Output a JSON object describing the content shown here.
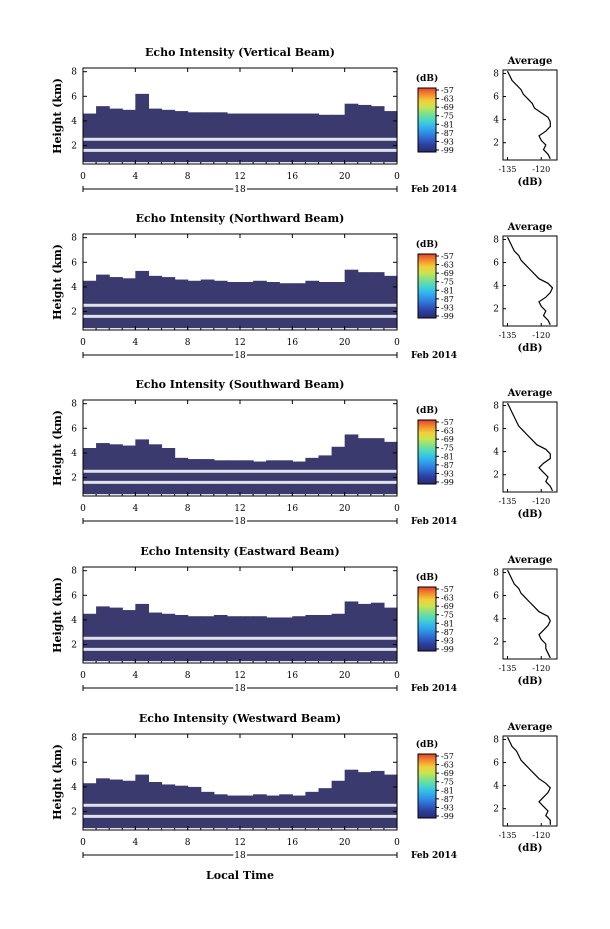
{
  "figure": {
    "xlabel": "Local Time",
    "date_label": "Feb 2014",
    "colorbar_unit": "(dB)",
    "avg_title": "Average",
    "avg_xlabel": "(dB)",
    "fill_color": "#3a3a6e",
    "colormap": [
      "#2b2b70",
      "#2c3c9a",
      "#2f62c8",
      "#2f8ee6",
      "#33b7ee",
      "#49d6c8",
      "#7fe08c",
      "#c7e452",
      "#f2cf3a",
      "#f28c2e",
      "#e8402a"
    ]
  },
  "chart_data": [
    {
      "type": "heatmap",
      "title": "Echo Intensity (Vertical Beam)",
      "ylabel": "Height (km)",
      "x_ticks": [
        "0",
        "4",
        "8",
        "12",
        "16",
        "20",
        "0"
      ],
      "x_day": "18",
      "y_ticks": [
        "2",
        "4",
        "6",
        "8"
      ],
      "xlim": [
        0,
        24
      ],
      "ylim": [
        0.5,
        8.3
      ],
      "colorbar_ticks": [
        "-57",
        "-63",
        "-69",
        "-75",
        "-81",
        "-87",
        "-93",
        "-99"
      ],
      "clim": [
        -99,
        -57
      ],
      "cloud_top_km": [
        4.6,
        5.2,
        5.0,
        4.9,
        6.2,
        5.0,
        4.9,
        4.8,
        4.7,
        4.7,
        4.7,
        4.6,
        4.6,
        4.6,
        4.6,
        4.6,
        4.6,
        4.6,
        4.5,
        4.5,
        5.4,
        5.3,
        5.2,
        4.8
      ],
      "avg_profile": {
        "x_ticks": [
          "-135",
          "-120"
        ],
        "xlim": [
          -137,
          -113
        ],
        "y_ticks": [
          "2",
          "4",
          "6",
          "8"
        ],
        "ylim": [
          0.5,
          8.3
        ],
        "height_km": [
          0.6,
          1.0,
          1.4,
          1.8,
          2.2,
          2.6,
          3.0,
          3.4,
          3.8,
          4.2,
          4.6,
          5.0,
          5.4,
          5.8,
          6.2,
          6.6,
          7.0,
          7.4,
          7.8,
          8.2
        ],
        "db": [
          -116,
          -117,
          -119,
          -118,
          -120,
          -121,
          -118,
          -116,
          -116,
          -117,
          -120,
          -123,
          -124,
          -126,
          -128,
          -129,
          -131,
          -133,
          -134,
          -135
        ]
      }
    },
    {
      "type": "heatmap",
      "title": "Echo Intensity (Northward Beam)",
      "ylabel": "Height (km)",
      "x_ticks": [
        "0",
        "4",
        "8",
        "12",
        "16",
        "20",
        "0"
      ],
      "x_day": "18",
      "y_ticks": [
        "2",
        "4",
        "6",
        "8"
      ],
      "xlim": [
        0,
        24
      ],
      "ylim": [
        0.5,
        8.3
      ],
      "colorbar_ticks": [
        "-57",
        "-63",
        "-69",
        "-75",
        "-81",
        "-87",
        "-93",
        "-99"
      ],
      "clim": [
        -99,
        -57
      ],
      "cloud_top_km": [
        4.5,
        5.0,
        4.8,
        4.7,
        5.3,
        4.9,
        4.8,
        4.6,
        4.5,
        4.6,
        4.5,
        4.4,
        4.4,
        4.5,
        4.4,
        4.3,
        4.3,
        4.5,
        4.4,
        4.4,
        5.4,
        5.2,
        5.2,
        4.9
      ],
      "avg_profile": {
        "x_ticks": [
          "-135",
          "-120"
        ],
        "xlim": [
          -137,
          -113
        ],
        "y_ticks": [
          "2",
          "4",
          "6",
          "8"
        ],
        "ylim": [
          0.5,
          8.3
        ],
        "height_km": [
          0.6,
          1.0,
          1.4,
          1.8,
          2.2,
          2.6,
          3.0,
          3.4,
          3.8,
          4.2,
          4.6,
          5.0,
          5.4,
          5.8,
          6.2,
          6.6,
          7.0,
          7.4,
          7.8,
          8.2
        ],
        "db": [
          -116,
          -117,
          -119,
          -118,
          -120,
          -121,
          -118,
          -116,
          -115,
          -117,
          -121,
          -123,
          -125,
          -127,
          -129,
          -130,
          -132,
          -133,
          -134,
          -135
        ]
      }
    },
    {
      "type": "heatmap",
      "title": "Echo Intensity (Southward Beam)",
      "ylabel": "Height (km)",
      "x_ticks": [
        "0",
        "4",
        "8",
        "12",
        "16",
        "20",
        "0"
      ],
      "x_day": "18",
      "y_ticks": [
        "2",
        "4",
        "6",
        "8"
      ],
      "xlim": [
        0,
        24
      ],
      "ylim": [
        0.5,
        8.3
      ],
      "colorbar_ticks": [
        "-57",
        "-63",
        "-69",
        "-75",
        "-81",
        "-87",
        "-93",
        "-99"
      ],
      "clim": [
        -99,
        -57
      ],
      "cloud_top_km": [
        4.4,
        4.8,
        4.7,
        4.6,
        5.1,
        4.7,
        4.4,
        3.6,
        3.5,
        3.5,
        3.4,
        3.4,
        3.4,
        3.3,
        3.4,
        3.4,
        3.3,
        3.6,
        3.8,
        4.5,
        5.5,
        5.2,
        5.2,
        4.9
      ],
      "avg_profile": {
        "x_ticks": [
          "-135",
          "-120"
        ],
        "xlim": [
          -137,
          -113
        ],
        "y_ticks": [
          "2",
          "4",
          "6",
          "8"
        ],
        "ylim": [
          0.5,
          8.3
        ],
        "height_km": [
          0.6,
          1.0,
          1.4,
          1.8,
          2.2,
          2.6,
          3.0,
          3.4,
          3.8,
          4.2,
          4.6,
          5.0,
          5.4,
          5.8,
          6.2,
          6.6,
          7.0,
          7.4,
          7.8,
          8.2
        ],
        "db": [
          -115,
          -116,
          -118,
          -117,
          -119,
          -121,
          -119,
          -116,
          -116,
          -118,
          -122,
          -124,
          -126,
          -128,
          -130,
          -131,
          -132,
          -133,
          -134,
          -135
        ]
      }
    },
    {
      "type": "heatmap",
      "title": "Echo Intensity (Eastward Beam)",
      "ylabel": "Height (km)",
      "x_ticks": [
        "0",
        "4",
        "8",
        "12",
        "16",
        "20",
        "0"
      ],
      "x_day": "18",
      "y_ticks": [
        "2",
        "4",
        "6",
        "8"
      ],
      "xlim": [
        0,
        24
      ],
      "ylim": [
        0.5,
        8.3
      ],
      "colorbar_ticks": [
        "-57",
        "-63",
        "-69",
        "-75",
        "-81",
        "-87",
        "-93",
        "-99"
      ],
      "clim": [
        -99,
        -57
      ],
      "cloud_top_km": [
        4.5,
        5.1,
        5.0,
        4.8,
        5.3,
        4.6,
        4.5,
        4.4,
        4.3,
        4.3,
        4.4,
        4.3,
        4.3,
        4.3,
        4.2,
        4.2,
        4.3,
        4.4,
        4.4,
        4.5,
        5.5,
        5.3,
        5.4,
        5.0
      ],
      "avg_profile": {
        "x_ticks": [
          "-135",
          "-120"
        ],
        "xlim": [
          -137,
          -113
        ],
        "y_ticks": [
          "2",
          "4",
          "6",
          "8"
        ],
        "ylim": [
          0.5,
          8.3
        ],
        "height_km": [
          0.6,
          1.0,
          1.4,
          1.8,
          2.2,
          2.6,
          3.0,
          3.4,
          3.8,
          4.2,
          4.6,
          5.0,
          5.4,
          5.8,
          6.2,
          6.6,
          7.0,
          7.4,
          7.8,
          8.2
        ],
        "db": [
          -116,
          -117,
          -118,
          -118,
          -120,
          -121,
          -119,
          -117,
          -116,
          -117,
          -121,
          -123,
          -125,
          -127,
          -129,
          -130,
          -132,
          -133,
          -134,
          -135
        ]
      }
    },
    {
      "type": "heatmap",
      "title": "Echo Intensity (Westward Beam)",
      "ylabel": "Height (km)",
      "x_ticks": [
        "0",
        "4",
        "8",
        "12",
        "16",
        "20",
        "0"
      ],
      "x_day": "18",
      "y_ticks": [
        "2",
        "4",
        "6",
        "8"
      ],
      "xlim": [
        0,
        24
      ],
      "ylim": [
        0.5,
        8.3
      ],
      "colorbar_ticks": [
        "-57",
        "-63",
        "-69",
        "-75",
        "-81",
        "-87",
        "-93",
        "-99"
      ],
      "clim": [
        -99,
        -57
      ],
      "cloud_top_km": [
        4.3,
        4.7,
        4.6,
        4.5,
        5.0,
        4.4,
        4.2,
        4.1,
        4.0,
        3.6,
        3.4,
        3.3,
        3.3,
        3.4,
        3.3,
        3.4,
        3.3,
        3.6,
        3.9,
        4.5,
        5.4,
        5.2,
        5.3,
        5.0
      ],
      "avg_profile": {
        "x_ticks": [
          "-135",
          "-120"
        ],
        "xlim": [
          -137,
          -113
        ],
        "y_ticks": [
          "2",
          "4",
          "6",
          "8"
        ],
        "ylim": [
          0.5,
          8.3
        ],
        "height_km": [
          0.6,
          1.0,
          1.4,
          1.8,
          2.2,
          2.6,
          3.0,
          3.4,
          3.8,
          4.2,
          4.6,
          5.0,
          5.4,
          5.8,
          6.2,
          6.6,
          7.0,
          7.4,
          7.8,
          8.2
        ],
        "db": [
          -116,
          -116,
          -118,
          -117,
          -119,
          -121,
          -119,
          -117,
          -116,
          -118,
          -121,
          -123,
          -125,
          -127,
          -129,
          -130,
          -131,
          -133,
          -134,
          -135
        ]
      }
    }
  ]
}
